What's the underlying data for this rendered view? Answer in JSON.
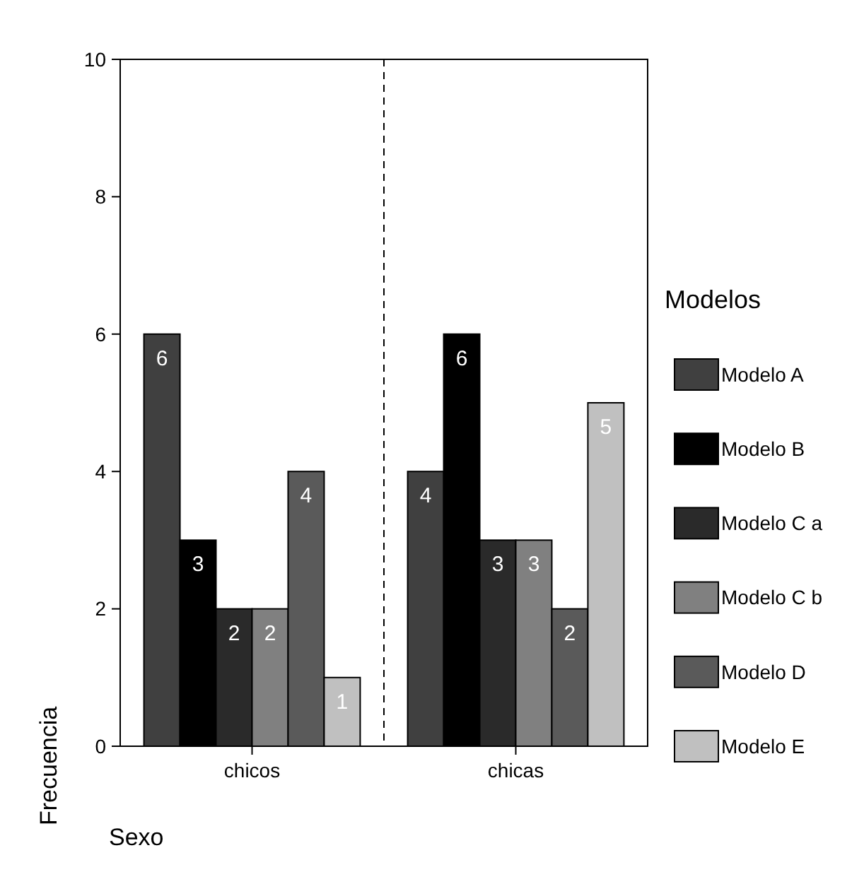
{
  "chart_data": {
    "type": "bar",
    "xlabel": "Sexo",
    "ylabel": "Frecuencia",
    "legend_title": "Modelos",
    "categories": [
      "chicos",
      "chicas"
    ],
    "series": [
      {
        "name": "Modelo A",
        "color": "#404040",
        "values": [
          6,
          4
        ]
      },
      {
        "name": "Modelo B",
        "color": "#000000",
        "values": [
          3,
          6
        ]
      },
      {
        "name": "Modelo C a",
        "color": "#2a2a2a",
        "values": [
          2,
          3
        ]
      },
      {
        "name": "Modelo C b",
        "color": "#808080",
        "values": [
          2,
          3
        ]
      },
      {
        "name": "Modelo D",
        "color": "#5a5a5a",
        "values": [
          4,
          2
        ]
      },
      {
        "name": "Modelo E",
        "color": "#c0c0c0",
        "values": [
          1,
          5
        ]
      }
    ],
    "ylim": [
      0,
      10
    ],
    "yticks": [
      0,
      2,
      4,
      6,
      8,
      10
    ],
    "data_labels": true,
    "legend": "right",
    "grid": false
  }
}
